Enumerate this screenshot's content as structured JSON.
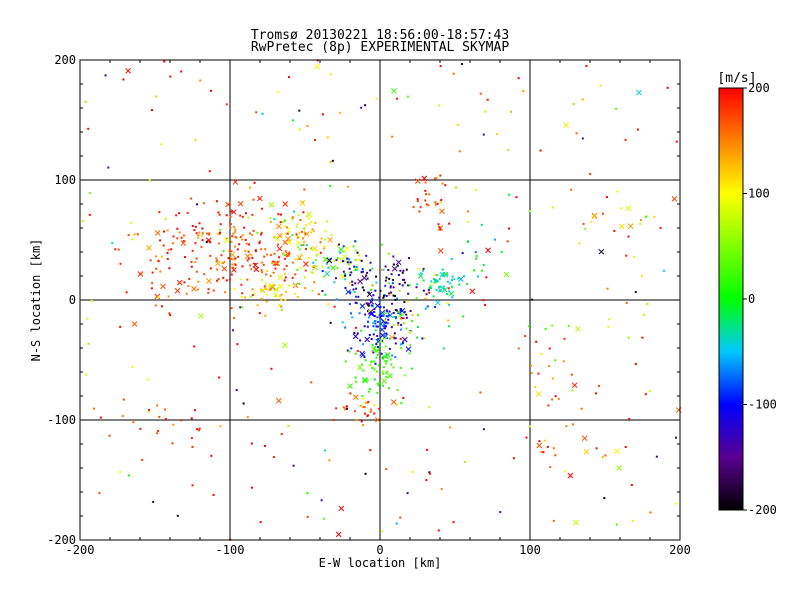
{
  "title_line1": "Tromsø 20130221 18:56:00-18:57:43",
  "title_line2": "RwPretec (8p) EXPERIMENTAL SKYMAP",
  "chart_data": {
    "type": "scatter",
    "xlabel": "E-W location [km]",
    "ylabel": "N-S location [km]",
    "xlim": [
      -200,
      200
    ],
    "ylim": [
      -200,
      200
    ],
    "xticks": [
      "-200",
      "-100",
      "0",
      "100",
      "200"
    ],
    "yticks": [
      "-200",
      "-100",
      "0",
      "100",
      "200"
    ],
    "grid": true,
    "colorbar": {
      "label": "[m/s]",
      "range": [
        -200,
        200
      ],
      "ticks": [
        "200",
        "100",
        "0",
        "-100",
        "-200"
      ],
      "colormap": "rainbow-black-to-red"
    },
    "markers": {
      "dot": "small dot (3-point fit)",
      "cross": "x marker"
    },
    "clusters": [
      {
        "cx": -105,
        "cy": 42,
        "sx": 30,
        "sy": 22,
        "n": 260,
        "v": 175,
        "vs": 25
      },
      {
        "cx": -70,
        "cy": 5,
        "sx": 10,
        "sy": 9,
        "n": 45,
        "v": 105,
        "vs": 25
      },
      {
        "cx": -55,
        "cy": 60,
        "sx": 12,
        "sy": 8,
        "n": 55,
        "v": 95,
        "vs": 40
      },
      {
        "cx": -35,
        "cy": 35,
        "sx": 15,
        "sy": 12,
        "n": 60,
        "v": 70,
        "vs": 55
      },
      {
        "cx": -20,
        "cy": 20,
        "sx": 10,
        "sy": 15,
        "n": 55,
        "v": -110,
        "vs": 60
      },
      {
        "cx": 0,
        "cy": -20,
        "sx": 10,
        "sy": 15,
        "n": 140,
        "v": -95,
        "vs": 30
      },
      {
        "cx": 5,
        "cy": 15,
        "sx": 12,
        "sy": 12,
        "n": 60,
        "v": -170,
        "vs": 40
      },
      {
        "cx": 0,
        "cy": -55,
        "sx": 10,
        "sy": 12,
        "n": 70,
        "v": 25,
        "vs": 15
      },
      {
        "cx": -10,
        "cy": -90,
        "sx": 10,
        "sy": 8,
        "n": 30,
        "v": 170,
        "vs": 30
      },
      {
        "cx": 40,
        "cy": 15,
        "sx": 8,
        "sy": 6,
        "n": 50,
        "v": -25,
        "vs": 15
      },
      {
        "cx": 20,
        "cy": -10,
        "sx": 15,
        "sy": 15,
        "n": 45,
        "v": 45,
        "vs": 50
      },
      {
        "cx": 35,
        "cy": 85,
        "sx": 8,
        "sy": 10,
        "n": 25,
        "v": 175,
        "vs": 20
      },
      {
        "cx": 165,
        "cy": 60,
        "sx": 15,
        "sy": 15,
        "n": 15,
        "v": 120,
        "vs": 40
      },
      {
        "cx": -140,
        "cy": -105,
        "sx": 25,
        "sy": 10,
        "n": 20,
        "v": 175,
        "vs": 20
      },
      {
        "cx": 115,
        "cy": -115,
        "sx": 15,
        "sy": 15,
        "n": 15,
        "v": 175,
        "vs": 20
      },
      {
        "cx": 110,
        "cy": -50,
        "sx": 15,
        "sy": 15,
        "n": 15,
        "v": 160,
        "vs": 30
      },
      {
        "cx": 140,
        "cy": -30,
        "sx": 20,
        "sy": 15,
        "n": 10,
        "v": 40,
        "vs": 20
      },
      {
        "cx": 65,
        "cy": 40,
        "sx": 10,
        "sy": 10,
        "n": 15,
        "v": 0,
        "vs": 40
      }
    ],
    "scattered": {
      "n": 260,
      "v": 160,
      "vs": 90
    }
  }
}
